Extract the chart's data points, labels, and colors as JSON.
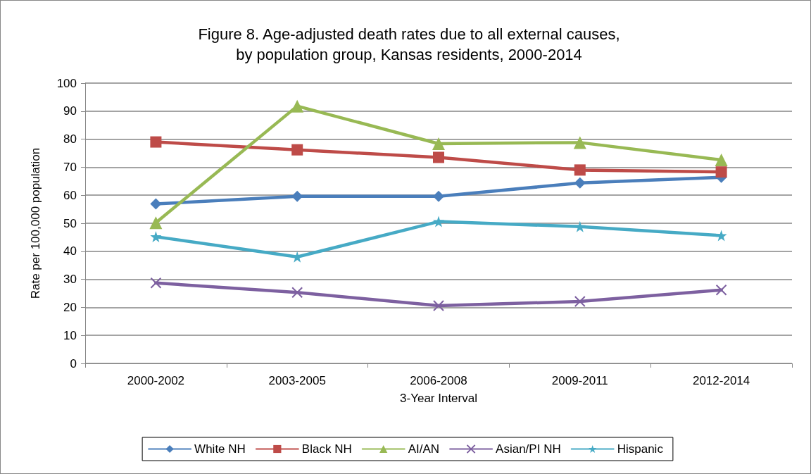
{
  "chart_data": {
    "type": "line",
    "title": "Figure 8. Age-adjusted death rates due to all external causes,\nby population group, Kansas residents, 2000-2014",
    "xlabel": "3-Year Interval",
    "ylabel": "Rate per 100,000 population",
    "categories": [
      "2000-2002",
      "2003-2005",
      "2006-2008",
      "2009-2011",
      "2012-2014"
    ],
    "ylim": [
      0,
      100
    ],
    "yticks": [
      0,
      10,
      20,
      30,
      40,
      50,
      60,
      70,
      80,
      90,
      100
    ],
    "grid": "y",
    "legend": "bottom",
    "line_style": "solid",
    "series": [
      {
        "name": "White NH",
        "color": "#4a7ebb",
        "marker": "diamond",
        "values": [
          56.9,
          59.6,
          59.6,
          64.4,
          66.4
        ]
      },
      {
        "name": "Black NH",
        "color": "#be4b48",
        "marker": "square",
        "values": [
          79.0,
          76.2,
          73.5,
          69.0,
          68.3
        ]
      },
      {
        "name": "AI/AN",
        "color": "#98b954",
        "marker": "triangle",
        "values": [
          50.2,
          91.8,
          78.4,
          78.8,
          72.6
        ]
      },
      {
        "name": "Asian/PI NH",
        "color": "#7d60a0",
        "marker": "cross",
        "values": [
          28.7,
          25.3,
          20.6,
          22.1,
          26.2
        ]
      },
      {
        "name": "Hispanic",
        "color": "#46aac5",
        "marker": "star",
        "values": [
          45.2,
          38.0,
          50.6,
          48.8,
          45.6
        ]
      }
    ]
  }
}
